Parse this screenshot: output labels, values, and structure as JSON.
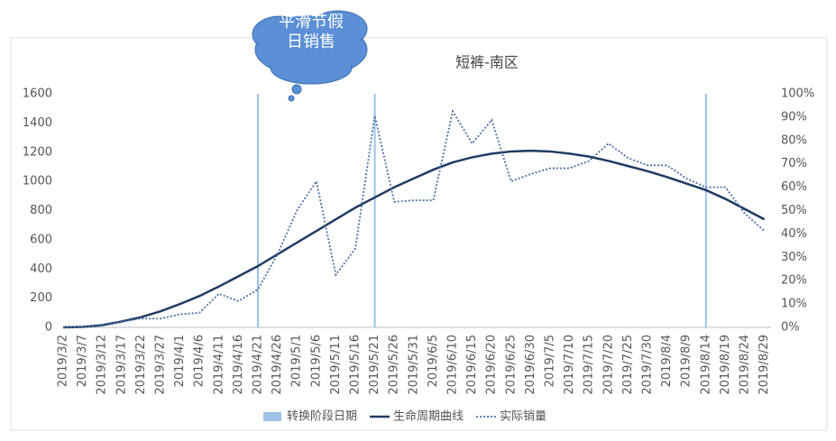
{
  "chart_data": {
    "type": "line",
    "title": "短裤-南区",
    "annotation": "平滑节假日销售",
    "categories": [
      "2019/3/2",
      "2019/3/7",
      "2019/3/12",
      "2019/3/17",
      "2019/3/22",
      "2019/3/27",
      "2019/4/1",
      "2019/4/6",
      "2019/4/11",
      "2019/4/16",
      "2019/4/21",
      "2019/4/26",
      "2019/5/1",
      "2019/5/6",
      "2019/5/11",
      "2019/5/16",
      "2019/5/21",
      "2019/5/26",
      "2019/5/31",
      "2019/6/5",
      "2019/6/10",
      "2019/6/15",
      "2019/6/20",
      "2019/6/25",
      "2019/6/30",
      "2019/7/5",
      "2019/7/10",
      "2019/7/15",
      "2019/7/20",
      "2019/7/25",
      "2019/7/30",
      "2019/8/4",
      "2019/8/9",
      "2019/8/14",
      "2019/8/19",
      "2019/8/24",
      "2019/8/29"
    ],
    "phase_dates": {
      "name": "转换阶段日期",
      "color": "#9dc3e6",
      "dates": [
        "2019/4/21",
        "2019/5/21",
        "2019/8/14"
      ]
    },
    "series": [
      {
        "name": "生命周期曲线",
        "color": "#1f3b63",
        "style": "solid",
        "values": [
          0,
          3,
          15,
          40,
          70,
          110,
          160,
          215,
          280,
          350,
          420,
          500,
          580,
          660,
          740,
          820,
          890,
          960,
          1020,
          1080,
          1130,
          1165,
          1190,
          1205,
          1210,
          1205,
          1190,
          1170,
          1140,
          1105,
          1070,
          1030,
          985,
          940,
          880,
          810,
          740
        ]
      },
      {
        "name": "实际销量",
        "color": "#4a6fa5",
        "style": "dotted",
        "values": [
          0,
          2,
          10,
          40,
          60,
          60,
          90,
          100,
          230,
          180,
          260,
          500,
          800,
          1000,
          360,
          540,
          1450,
          860,
          870,
          870,
          1480,
          1260,
          1420,
          1000,
          1050,
          1090,
          1090,
          1140,
          1260,
          1160,
          1110,
          1110,
          1020,
          960,
          960,
          780,
          660
        ]
      }
    ],
    "ylim": [
      0,
      1600
    ],
    "yticks": [
      0,
      200,
      400,
      600,
      800,
      1000,
      1200,
      1400,
      1600
    ],
    "y2lim": [
      0,
      100
    ],
    "y2ticks": [
      {
        "value": 0,
        "label": "0%"
      },
      {
        "value": 10,
        "label": "10%"
      },
      {
        "value": 20,
        "label": "20%"
      },
      {
        "value": 30,
        "label": "30%"
      },
      {
        "value": 40,
        "label": "40%"
      },
      {
        "value": 50,
        "label": "50%"
      },
      {
        "value": 60,
        "label": "60%"
      },
      {
        "value": 70,
        "label": "70%"
      },
      {
        "value": 80,
        "label": "80%"
      },
      {
        "value": 90,
        "label": "90%"
      },
      {
        "value": 100,
        "label": "100%"
      }
    ],
    "grid": false
  }
}
